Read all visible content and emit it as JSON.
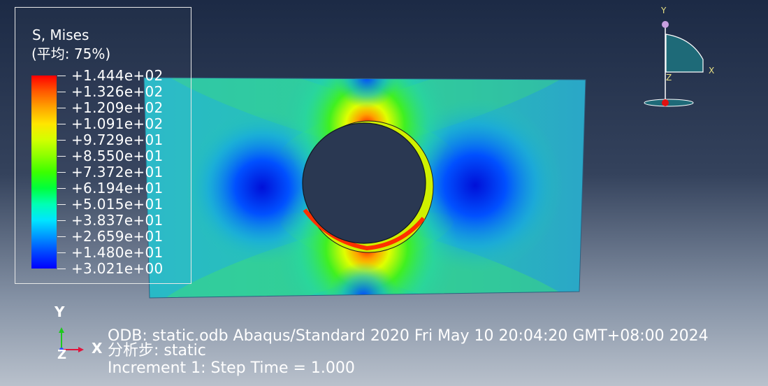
{
  "legend": {
    "title": "S, Mises",
    "subtitle": "(平均: 75%)",
    "values": [
      "+1.444e+02",
      "+1.326e+02",
      "+1.209e+02",
      "+1.091e+02",
      "+9.729e+01",
      "+8.550e+01",
      "+7.372e+01",
      "+6.194e+01",
      "+5.015e+01",
      "+3.837e+01",
      "+2.659e+01",
      "+1.480e+01",
      "+3.021e+00"
    ],
    "band_colors": [
      "#ff0000",
      "#ff5a00",
      "#ffa500",
      "#ffe500",
      "#d2ff00",
      "#8cff00",
      "#3cff00",
      "#00ff3c",
      "#00ffb4",
      "#00e5ff",
      "#0096ff",
      "#0046ff",
      "#0000ff"
    ]
  },
  "info": {
    "odb_line": "ODB: static.odb    Abaqus/Standard 2020    Fri May 10 20:04:20 GMT+08:00 2024",
    "step_line": "分析步: static",
    "increment_line": "Increment      1: Step Time =    1.000"
  },
  "triad": {
    "x_label": "X",
    "y_label": "Y",
    "z_label": "Z",
    "x_color": "#e0143c",
    "y_color": "#1ec81e",
    "z_color": "#3250ff"
  },
  "view_cube": {
    "x_label": "X",
    "y_label": "Y",
    "z_label": "Z",
    "face_color": "#1e6a78",
    "outline_color": "#ffffff",
    "origin_dot_color": "#e01010",
    "axis_dot_color": "#c8a0e0"
  },
  "model": {
    "high_color": "#ff2000",
    "low_color": "#0010d8",
    "mid_color": "#27c7b0",
    "hole_color": "#2a3852"
  }
}
